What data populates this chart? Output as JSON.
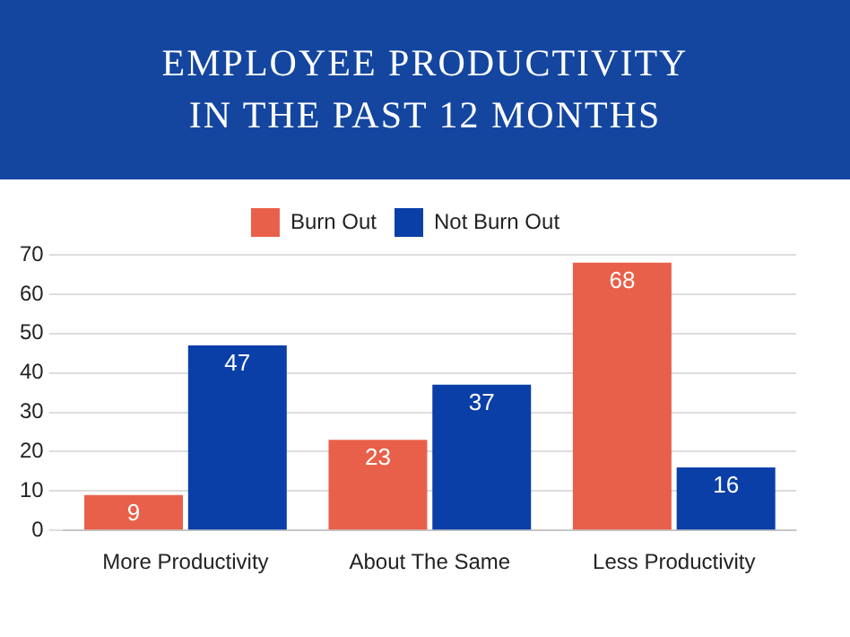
{
  "chart_data": {
    "type": "bar",
    "title": "EMPLOYEE PRODUCTIVITY IN THE PAST 12 MONTHS",
    "categories": [
      "More Productivity",
      "About The Same",
      "Less Productivity"
    ],
    "series": [
      {
        "name": "Burn Out",
        "color": "#e8604a",
        "values": [
          9,
          23,
          68
        ]
      },
      {
        "name": "Not Burn Out",
        "color": "#0a3fa8",
        "values": [
          47,
          37,
          16
        ]
      }
    ],
    "ylim": [
      0,
      70
    ],
    "yticks": [
      0,
      10,
      20,
      30,
      40,
      50,
      60,
      70
    ],
    "grid": "y",
    "legend": "top",
    "data_labels": true
  }
}
